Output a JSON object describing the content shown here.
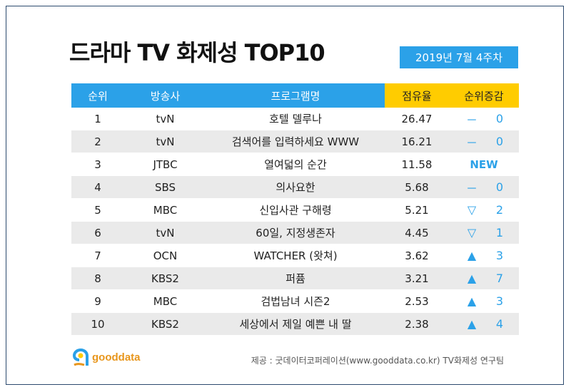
{
  "title": "드라마 TV 화제성 TOP10",
  "date": "2019년  7월 4주차",
  "headers": {
    "rank": "순위",
    "broadcaster": "방송사",
    "program": "프로그램명",
    "share": "점유율",
    "change": "순위증감"
  },
  "rows": [
    {
      "rank": "1",
      "broadcaster": "tvN",
      "program": "호텔 델루나",
      "share": "26.47",
      "symbol": "－",
      "change": "0"
    },
    {
      "rank": "2",
      "broadcaster": "tvN",
      "program": "검색어를 입력하세요 WWW",
      "share": "16.21",
      "symbol": "－",
      "change": "0"
    },
    {
      "rank": "3",
      "broadcaster": "JTBC",
      "program": "열여덟의 순간",
      "share": "11.58",
      "symbol": "",
      "change": "NEW"
    },
    {
      "rank": "4",
      "broadcaster": "SBS",
      "program": "의사요한",
      "share": "5.68",
      "symbol": "－",
      "change": "0"
    },
    {
      "rank": "5",
      "broadcaster": "MBC",
      "program": "신입사관 구해령",
      "share": "5.21",
      "symbol": "▽",
      "change": "2"
    },
    {
      "rank": "6",
      "broadcaster": "tvN",
      "program": "60일, 지정생존자",
      "share": "4.45",
      "symbol": "▽",
      "change": "1"
    },
    {
      "rank": "7",
      "broadcaster": "OCN",
      "program": "WATCHER (왓쳐)",
      "share": "3.62",
      "symbol": "▲",
      "change": "3"
    },
    {
      "rank": "8",
      "broadcaster": "KBS2",
      "program": "퍼퓸",
      "share": "3.21",
      "symbol": "▲",
      "change": "7"
    },
    {
      "rank": "9",
      "broadcaster": "MBC",
      "program": "검법남녀 시즌2",
      "share": "2.53",
      "symbol": "▲",
      "change": "3"
    },
    {
      "rank": "10",
      "broadcaster": "KBS2",
      "program": "세상에서 제일 예쁜 내 딸",
      "share": "2.38",
      "symbol": "▲",
      "change": "4"
    }
  ],
  "logo": {
    "text": "gooddata",
    "icon": "gooddata-logo-icon"
  },
  "source": "제공 : 굿데이터코퍼레이션(www.gooddata.co.kr) TV화제성 연구팀",
  "colors": {
    "accent": "#2ba1e8",
    "highlight": "#ffcc00",
    "alt_row": "#eaeaea",
    "logo": "#e8961c"
  }
}
